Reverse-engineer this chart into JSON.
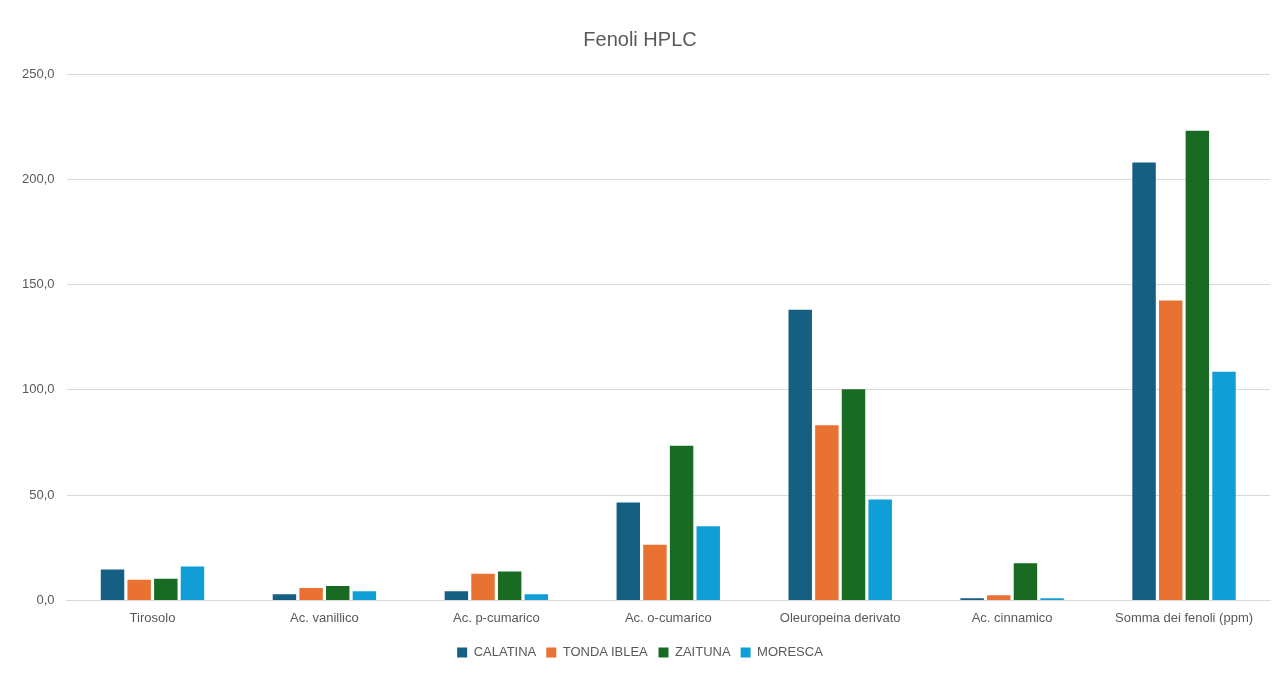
{
  "chart_data": {
    "type": "bar",
    "title": "Fenoli HPLC",
    "categories": [
      "Tirosolo",
      "Ac. vanillico",
      "Ac. p-cumarico",
      "Ac. o-cumarico",
      "Oleuropeina derivato",
      "Ac. cinnamico",
      "Somma dei fenoli (ppm)"
    ],
    "series": [
      {
        "name": "CALATINA",
        "color": "#155f83",
        "values": [
          14.7,
          2.9,
          4.4,
          46.5,
          138,
          1.0,
          208
        ]
      },
      {
        "name": "TONDA IBLEA",
        "color": "#e97132",
        "values": [
          9.8,
          5.9,
          12.7,
          26.4,
          83.2,
          2.5,
          142.4
        ]
      },
      {
        "name": "ZAITUNA",
        "color": "#196b24",
        "values": [
          10.3,
          6.8,
          13.7,
          73.4,
          100.3,
          17.6,
          223
        ]
      },
      {
        "name": "MORESCA",
        "color": "#0f9ed5",
        "values": [
          16.1,
          4.4,
          2.9,
          35.2,
          47.9,
          1.0,
          108.6
        ]
      }
    ],
    "ylim": [
      0,
      250
    ],
    "yticks": [
      {
        "value": 0,
        "label": "0,0"
      },
      {
        "value": 50,
        "label": "50,0"
      },
      {
        "value": 100,
        "label": "100,0"
      },
      {
        "value": 150,
        "label": "150,0"
      },
      {
        "value": 200,
        "label": "200,0"
      },
      {
        "value": 250,
        "label": "250,0"
      }
    ],
    "grid": "y",
    "legend": "bottom"
  }
}
